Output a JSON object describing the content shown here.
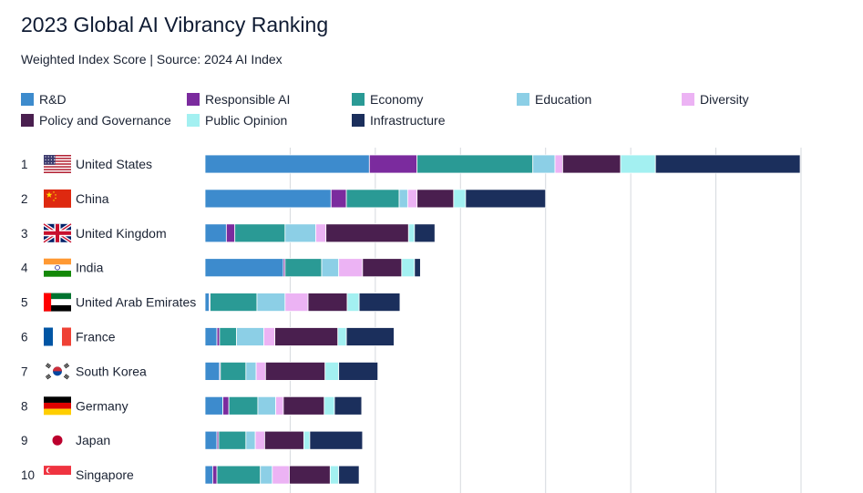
{
  "header": {
    "title": "2023 Global AI Vibrancy Ranking",
    "subtitle": "Weighted Index Score | Source: 2024 AI Index"
  },
  "legend": [
    {
      "label": "R&D",
      "color": "#3d8bcd"
    },
    {
      "label": "Responsible AI",
      "color": "#7b2b9e"
    },
    {
      "label": "Economy",
      "color": "#2a9a95"
    },
    {
      "label": "Education",
      "color": "#8ccfe6"
    },
    {
      "label": "Diversity",
      "color": "#ecb3f4"
    },
    {
      "label": "Policy and Governance",
      "color": "#4a1f4f"
    },
    {
      "label": "Public Opinion",
      "color": "#a3f0f1"
    },
    {
      "label": "Infrastructure",
      "color": "#1b2f5c"
    }
  ],
  "flags": {
    "United States": "us-flag",
    "China": "china-flag",
    "United Kingdom": "uk-flag",
    "India": "india-flag",
    "United Arab Emirates": "uae-flag",
    "France": "france-flag",
    "South Korea": "south-korea-flag",
    "Germany": "germany-flag",
    "Japan": "japan-flag",
    "Singapore": "singapore-flag"
  },
  "chart_data": {
    "type": "bar",
    "orientation": "horizontal",
    "stacked": true,
    "grid": true,
    "xlim": [
      0,
      70
    ],
    "categories": [
      "United States",
      "China",
      "United Kingdom",
      "India",
      "United Arab Emirates",
      "France",
      "South Korea",
      "Germany",
      "Japan",
      "Singapore"
    ],
    "ranks": [
      "1",
      "2",
      "3",
      "4",
      "5",
      "6",
      "7",
      "8",
      "9",
      "10"
    ],
    "series": [
      {
        "name": "R&D",
        "values": [
          19.3,
          14.8,
          2.5,
          9.2,
          0.5,
          1.4,
          1.7,
          2.1,
          1.4,
          0.9
        ]
      },
      {
        "name": "Responsible AI",
        "values": [
          5.6,
          1.8,
          1.0,
          0.2,
          0.1,
          0.3,
          0.1,
          0.7,
          0.2,
          0.5
        ]
      },
      {
        "name": "Economy",
        "values": [
          13.6,
          6.2,
          5.9,
          4.3,
          5.5,
          2.0,
          3.0,
          3.4,
          3.2,
          5.1
        ]
      },
      {
        "name": "Education",
        "values": [
          2.6,
          1.0,
          3.6,
          2.0,
          3.3,
          3.2,
          1.2,
          2.1,
          1.1,
          1.4
        ]
      },
      {
        "name": "Diversity",
        "values": [
          0.9,
          1.1,
          1.2,
          2.8,
          2.7,
          1.3,
          1.1,
          0.9,
          1.1,
          2.0
        ]
      },
      {
        "name": "Policy and Governance",
        "values": [
          6.8,
          4.3,
          9.7,
          4.6,
          4.6,
          7.4,
          7.0,
          4.8,
          4.6,
          4.8
        ]
      },
      {
        "name": "Public Opinion",
        "values": [
          4.1,
          1.4,
          0.7,
          1.5,
          1.4,
          1.0,
          1.6,
          1.2,
          0.7,
          1.0
        ]
      },
      {
        "name": "Infrastructure",
        "values": [
          17.0,
          9.4,
          2.4,
          0.7,
          4.8,
          5.6,
          4.6,
          3.2,
          6.2,
          2.4
        ]
      }
    ]
  }
}
